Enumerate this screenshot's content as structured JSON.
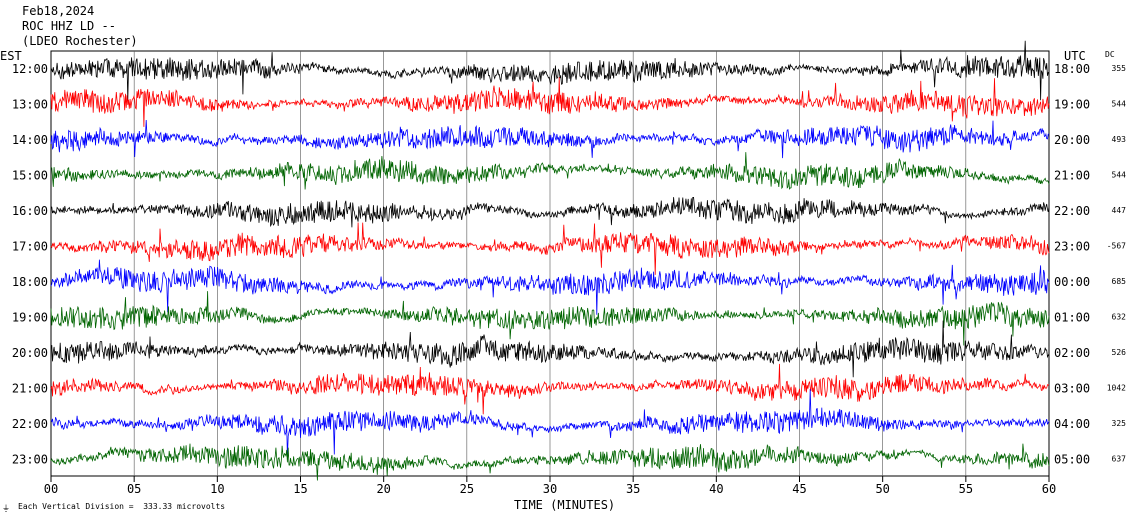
{
  "header": {
    "date": "Feb18,2024",
    "station_line": "ROC HHZ LD --",
    "network_line": "(LDEO Rochester)"
  },
  "labels": {
    "left_tz": "EST",
    "right_tz": "UTC",
    "dc_header": "DC",
    "x_axis_title": "TIME (MINUTES)",
    "footer": "Each Vertical Division =  333.33 microvolts"
  },
  "chart_data": {
    "type": "line",
    "title": "",
    "xlabel": "TIME (MINUTES)",
    "xlim": [
      0,
      60
    ],
    "x_ticks": [
      "00",
      "05",
      "10",
      "15",
      "20",
      "25",
      "30",
      "35",
      "40",
      "45",
      "50",
      "55",
      "60"
    ],
    "grid_vertical_every_minutes": 5,
    "colors_cycle": [
      "#000000",
      "#ff0000",
      "#0000ff",
      "#006400"
    ],
    "rows": [
      {
        "est": "12:00",
        "utc": "18:00",
        "dc": "355"
      },
      {
        "est": "13:00",
        "utc": "19:00",
        "dc": "544"
      },
      {
        "est": "14:00",
        "utc": "20:00",
        "dc": "493"
      },
      {
        "est": "15:00",
        "utc": "21:00",
        "dc": "544"
      },
      {
        "est": "16:00",
        "utc": "22:00",
        "dc": "447"
      },
      {
        "est": "17:00",
        "utc": "23:00",
        "dc": "-567"
      },
      {
        "est": "18:00",
        "utc": "00:00",
        "dc": "685"
      },
      {
        "est": "19:00",
        "utc": "01:00",
        "dc": "632"
      },
      {
        "est": "20:00",
        "utc": "02:00",
        "dc": "526"
      },
      {
        "est": "21:00",
        "utc": "03:00",
        "dc": "1042"
      },
      {
        "est": "22:00",
        "utc": "04:00",
        "dc": "325"
      },
      {
        "est": "23:00",
        "utc": "05:00",
        "dc": "637"
      }
    ]
  }
}
